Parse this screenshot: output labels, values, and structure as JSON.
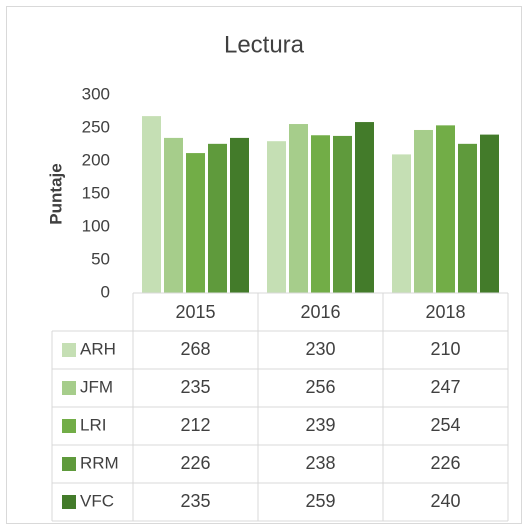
{
  "chart_data": {
    "type": "bar",
    "title": "Lectura",
    "y_label": "Puntaje",
    "categories": [
      "2015",
      "2016",
      "2018"
    ],
    "series": [
      {
        "name": "ARH",
        "color": "#c5dfb4",
        "values": [
          268,
          230,
          210
        ]
      },
      {
        "name": "JFM",
        "color": "#a6cd8b",
        "values": [
          235,
          256,
          247
        ]
      },
      {
        "name": "LRI",
        "color": "#72ad47",
        "values": [
          212,
          239,
          254
        ]
      },
      {
        "name": "RRM",
        "color": "#5f9a3c",
        "values": [
          226,
          238,
          226
        ]
      },
      {
        "name": "VFC",
        "color": "#437b2a",
        "values": [
          235,
          259,
          240
        ]
      }
    ],
    "ylim": [
      0,
      300
    ],
    "yticks": [
      0,
      50,
      100,
      150,
      200,
      250,
      300
    ],
    "grid": false,
    "data_table": true
  }
}
